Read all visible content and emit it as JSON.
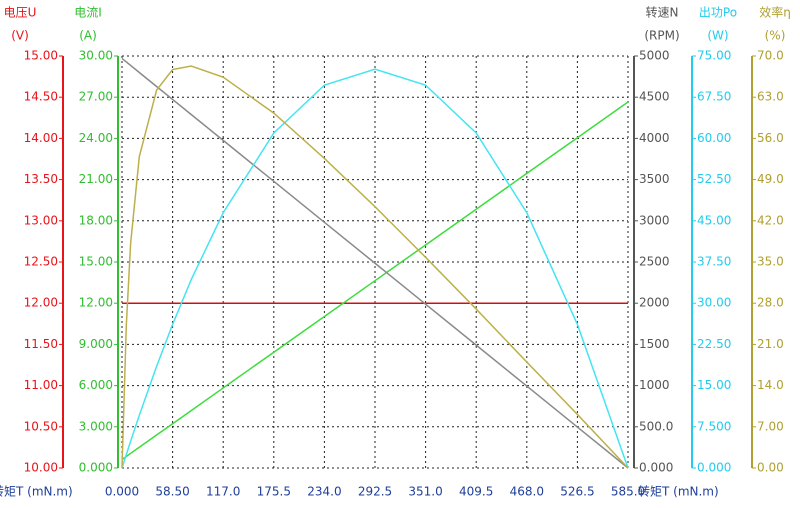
{
  "chart_data": {
    "type": "line",
    "x_label": "转矩T (mN.m)",
    "x_color": "#1f3f9a",
    "grid": true,
    "xlim": [
      0,
      585
    ],
    "xticks": [
      {
        "value": 0,
        "label": "0.000"
      },
      {
        "value": 58.5,
        "label": "58.50"
      },
      {
        "value": 117,
        "label": "117.0"
      },
      175.5,
      {
        "value": 234,
        "label": "234.0"
      },
      292.5,
      {
        "value": 351,
        "label": "351.0"
      },
      409.5,
      {
        "value": 468,
        "label": "468.0"
      },
      526.5,
      {
        "value": 585,
        "label": "585.0"
      }
    ],
    "x": [
      0,
      5,
      10,
      20,
      40,
      58.5,
      80,
      117,
      175.5,
      234,
      292.5,
      351,
      409.5,
      468,
      526.5,
      585
    ],
    "y_axes": [
      {
        "title": "电压U",
        "unit": "(V)",
        "color": "#e8141a",
        "line_color": "#d01010",
        "ylim": [
          10,
          15
        ],
        "yticks": [
          {
            "value": 10,
            "label": "10.00"
          },
          {
            "value": 10.5,
            "label": "10.50"
          },
          {
            "value": 11,
            "label": "11.00"
          },
          {
            "value": 11.5,
            "label": "11.50"
          },
          {
            "value": 12,
            "label": "12.00"
          },
          {
            "value": 12.5,
            "label": "12.50"
          },
          {
            "value": 13,
            "label": "13.00"
          },
          {
            "value": 13.5,
            "label": "13.50"
          },
          {
            "value": 14,
            "label": "14.00"
          },
          {
            "value": 14.5,
            "label": "14.50"
          },
          {
            "value": 15,
            "label": "15.00"
          }
        ],
        "values": [
          12,
          12,
          12,
          12,
          12,
          12,
          12,
          12,
          12,
          12,
          12,
          12,
          12,
          12,
          12,
          12
        ]
      },
      {
        "title": "电流I",
        "unit": "(A)",
        "color": "#2fbf2f",
        "line_color": "#3ddc3d",
        "ylim": [
          0,
          30
        ],
        "yticks": [
          {
            "value": 0,
            "label": "0.000"
          },
          {
            "value": 3,
            "label": "3.000"
          },
          {
            "value": 6,
            "label": "6.000"
          },
          {
            "value": 9,
            "label": "9.000"
          },
          {
            "value": 12,
            "label": "12.00"
          },
          {
            "value": 15,
            "label": "15.00"
          },
          {
            "value": 18,
            "label": "18.00"
          },
          {
            "value": 21,
            "label": "21.00"
          },
          {
            "value": 24,
            "label": "24.00"
          },
          {
            "value": 27,
            "label": "27.00"
          },
          {
            "value": 30,
            "label": "30.00"
          }
        ],
        "values": [
          0.62,
          0.84,
          1.07,
          1.51,
          2.4,
          3.22,
          4.18,
          5.83,
          8.43,
          11.03,
          13.64,
          16.24,
          18.84,
          21.45,
          24.05,
          26.65
        ]
      },
      {
        "title": "转速N",
        "unit": "(RPM)",
        "color": "#555555",
        "line_color": "#8a8a8a",
        "ylim": [
          0,
          5000
        ],
        "yticks": [
          {
            "value": 0,
            "label": "0.000"
          },
          {
            "value": 500,
            "label": "500.0"
          },
          1000,
          1500,
          2000,
          2500,
          3000,
          3500,
          4000,
          4500,
          5000
        ],
        "values": [
          4970,
          4928,
          4885,
          4800,
          4630,
          4473,
          4290,
          3976,
          3479,
          2982,
          2485,
          1988,
          1491,
          994,
          497,
          0
        ]
      },
      {
        "title": "出功Po",
        "unit": "(W)",
        "color": "#22ccee",
        "line_color": "#44e4f2",
        "ylim": [
          0,
          75
        ],
        "yticks": [
          {
            "value": 0,
            "label": "0.000"
          },
          {
            "value": 7.5,
            "label": "7.500"
          },
          {
            "value": 15,
            "label": "15.00"
          },
          {
            "value": 22.5,
            "label": "22.50"
          },
          {
            "value": 30,
            "label": "30.00"
          },
          {
            "value": 37.5,
            "label": "37.50"
          },
          {
            "value": 45,
            "label": "45.00"
          },
          {
            "value": 52.5,
            "label": "52.50"
          },
          {
            "value": 60,
            "label": "60.00"
          },
          {
            "value": 67.5,
            "label": "67.50"
          },
          {
            "value": 75,
            "label": "75.00"
          }
        ],
        "values": [
          0,
          2.46,
          4.88,
          9.59,
          18.5,
          26.14,
          34.28,
          46.46,
          60.98,
          69.7,
          72.6,
          69.7,
          60.98,
          46.46,
          26.14,
          0
        ]
      },
      {
        "title": "效率η",
        "unit": "(%)",
        "color": "#b0a030",
        "line_color": "#bdb04a",
        "ylim": [
          0,
          70
        ],
        "yticks": [
          {
            "value": 0,
            "label": "0.00"
          },
          {
            "value": 7,
            "label": "7.00"
          },
          {
            "value": 14,
            "label": "14.0"
          },
          {
            "value": 21,
            "label": "21.0"
          },
          {
            "value": 28,
            "label": "28.0"
          },
          {
            "value": 35,
            "label": "35.0"
          },
          {
            "value": 42,
            "label": "42.0"
          },
          {
            "value": 49,
            "label": "49.0"
          },
          {
            "value": 56,
            "label": "56.0"
          },
          {
            "value": 63,
            "label": "63.0"
          },
          {
            "value": 70,
            "label": "70.0"
          }
        ],
        "values": [
          0,
          24.3,
          38.2,
          52.9,
          64.2,
          67.7,
          68.3,
          66.4,
          60.3,
          52.6,
          44.4,
          35.8,
          27.0,
          18.0,
          9.1,
          0
        ]
      }
    ]
  }
}
